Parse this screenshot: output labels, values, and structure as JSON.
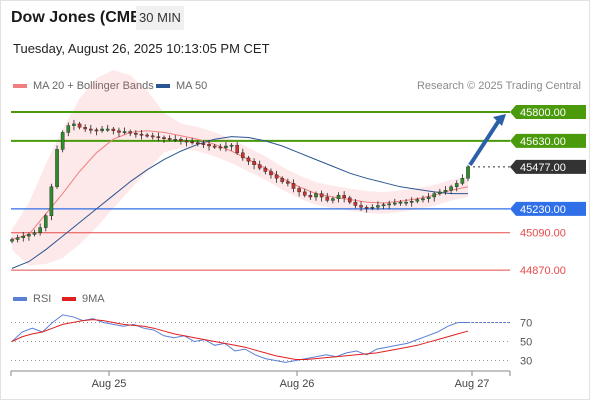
{
  "header": {
    "title": "Dow Jones (CME)",
    "interval": "30 MIN",
    "datetime": "Tuesday, August 26, 2025 10:13:05 PM CET"
  },
  "legend": {
    "ma20": {
      "label": "MA 20 + Bollinger Bands",
      "color": "#f08080"
    },
    "ma50": {
      "label": "MA 50",
      "color": "#2b5592"
    }
  },
  "credit": "Research © 2025 Trading Central",
  "rsi_legend": {
    "rsi": {
      "label": "RSI",
      "color": "#5a7fd6"
    },
    "ma9": {
      "label": "9MA",
      "color": "#e02020"
    }
  },
  "chart_data": [
    {
      "type": "candlestick",
      "x_ticks": [
        "Aug 25",
        "Aug 26",
        "Aug 27"
      ],
      "ylim": [
        44800,
        45900
      ],
      "levels": [
        {
          "label": "45800.00",
          "value": 45800,
          "color": "#4a9a0c",
          "kind": "resistance"
        },
        {
          "label": "45630.00",
          "value": 45630,
          "color": "#4a9a0c",
          "kind": "resistance"
        },
        {
          "label": "45477.00",
          "value": 45477,
          "color": "#333333",
          "kind": "last"
        },
        {
          "label": "45230.00",
          "value": 45230,
          "color": "#2f6fe8",
          "kind": "pivot"
        },
        {
          "label": "45090.00",
          "value": 45090,
          "color": "#e84a4a",
          "kind": "support"
        },
        {
          "label": "44870.00",
          "value": 44870,
          "color": "#e84a4a",
          "kind": "support"
        }
      ],
      "close": [
        45050,
        45060,
        45070,
        45080,
        45090,
        45120,
        45190,
        45360,
        45580,
        45680,
        45720,
        45730,
        45710,
        45700,
        45695,
        45690,
        45700,
        45700,
        45690,
        45680,
        45685,
        45675,
        45670,
        45665,
        45660,
        45655,
        45650,
        45645,
        45640,
        45640,
        45630,
        45625,
        45620,
        45615,
        45610,
        45600,
        45595,
        45590,
        45600,
        45605,
        45560,
        45530,
        45510,
        45490,
        45470,
        45450,
        45430,
        45410,
        45390,
        45380,
        45350,
        45330,
        45310,
        45300,
        45320,
        45300,
        45280,
        45290,
        45310,
        45295,
        45270,
        45250,
        45240,
        45235,
        45240,
        45250,
        45255,
        45260,
        45265,
        45270,
        45270,
        45275,
        45285,
        45290,
        45300,
        45320,
        45330,
        45340,
        45360,
        45380,
        45410,
        45477
      ],
      "series": [
        {
          "name": "MA 20 + Bollinger Bands",
          "values": [
            45050,
            45080,
            45200,
            45320,
            45450,
            45560,
            45640,
            45680,
            45690,
            45680,
            45660,
            45640,
            45610,
            45570,
            45520,
            45470,
            45410,
            45360,
            45320,
            45300,
            45285,
            45270,
            45265,
            45275,
            45290,
            45310,
            45340,
            45360
          ]
        },
        {
          "name": "MA 50",
          "values": [
            44880,
            44920,
            44990,
            45070,
            45150,
            45230,
            45310,
            45390,
            45460,
            45520,
            45570,
            45610,
            45640,
            45655,
            45650,
            45630,
            45600,
            45560,
            45520,
            45480,
            45440,
            45410,
            45385,
            45360,
            45345,
            45330,
            45320,
            45320
          ]
        }
      ]
    },
    {
      "type": "line",
      "ylim": [
        20,
        80
      ],
      "y_ticks": [
        "70",
        "50",
        "30"
      ],
      "series": [
        {
          "name": "RSI",
          "values": [
            50,
            60,
            64,
            60,
            70,
            78,
            76,
            72,
            74,
            70,
            68,
            66,
            68,
            64,
            62,
            56,
            54,
            56,
            50,
            52,
            46,
            48,
            40,
            42,
            36,
            32,
            30,
            28,
            30,
            32,
            34,
            36,
            34,
            38,
            40,
            36,
            42,
            44,
            46,
            48,
            52,
            56,
            60,
            66,
            70,
            70
          ]
        },
        {
          "name": "9MA",
          "values": [
            50,
            55,
            58,
            60,
            64,
            68,
            70,
            72,
            73,
            72,
            70,
            68,
            67,
            66,
            64,
            61,
            58,
            56,
            54,
            52,
            50,
            48,
            46,
            44,
            41,
            38,
            35,
            33,
            31,
            31,
            32,
            33,
            34,
            35,
            36,
            37,
            38,
            40,
            42,
            44,
            46,
            49,
            52,
            55,
            58,
            61
          ]
        }
      ]
    }
  ]
}
